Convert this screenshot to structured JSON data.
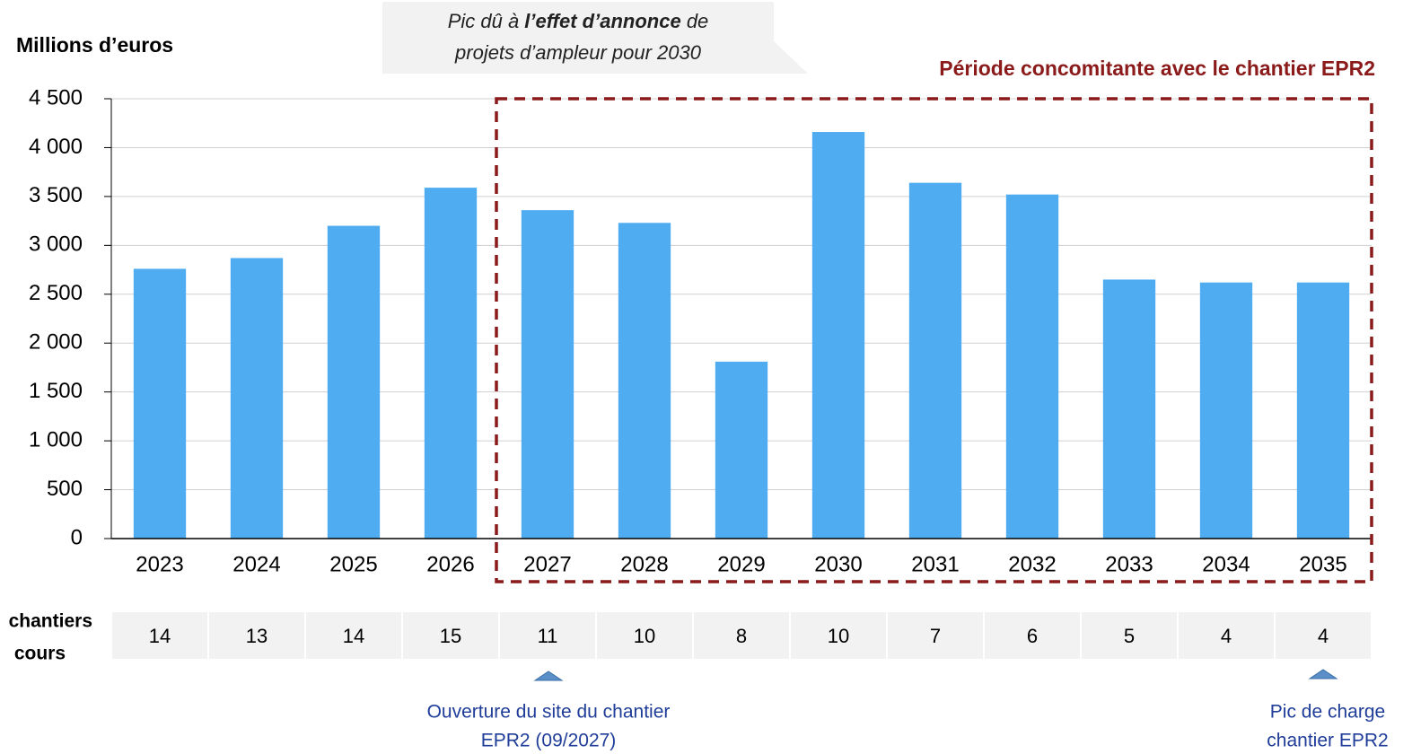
{
  "chart_data": {
    "type": "bar",
    "y_label": "Millions d’euros",
    "categories": [
      "2023",
      "2024",
      "2025",
      "2026",
      "2027",
      "2028",
      "2029",
      "2030",
      "2031",
      "2032",
      "2033",
      "2034",
      "2035"
    ],
    "values": [
      2760,
      2870,
      3200,
      3590,
      3360,
      3230,
      1810,
      4160,
      3640,
      3520,
      2650,
      2620,
      2620
    ],
    "color": "#4facf0",
    "ylim": [
      0,
      4500
    ],
    "yticks": [
      0,
      500,
      {
        "value": 1000,
        "label": "1 000"
      },
      {
        "value": 1500,
        "label": "1 500"
      },
      {
        "value": 2000,
        "label": "2 000"
      },
      {
        "value": 2500,
        "label": "2 500"
      },
      {
        "value": 3000,
        "label": "3 000"
      },
      {
        "value": 3500,
        "label": "3 500"
      },
      {
        "value": 4000,
        "label": "4 000"
      },
      {
        "value": 4500,
        "label": "4 500"
      }
    ],
    "grid": true,
    "callout": [
      "Pic dû à ",
      "l’effet d’annonce",
      " de",
      "projets d’ampleur pour 2030"
    ],
    "period_label": "Période concomitante avec le chantier EPR2",
    "row_label": [
      "chantiers",
      "cours"
    ],
    "row_values": [
      "14",
      "13",
      "14",
      "15",
      "11",
      "10",
      "8",
      "10",
      "7",
      "6",
      "5",
      "4",
      "4"
    ],
    "notes": [
      [
        "Ouverture du site du chantier",
        "EPR2 (09/2027)"
      ],
      [
        "Pic de charge",
        "chantier EPR2"
      ]
    ]
  }
}
